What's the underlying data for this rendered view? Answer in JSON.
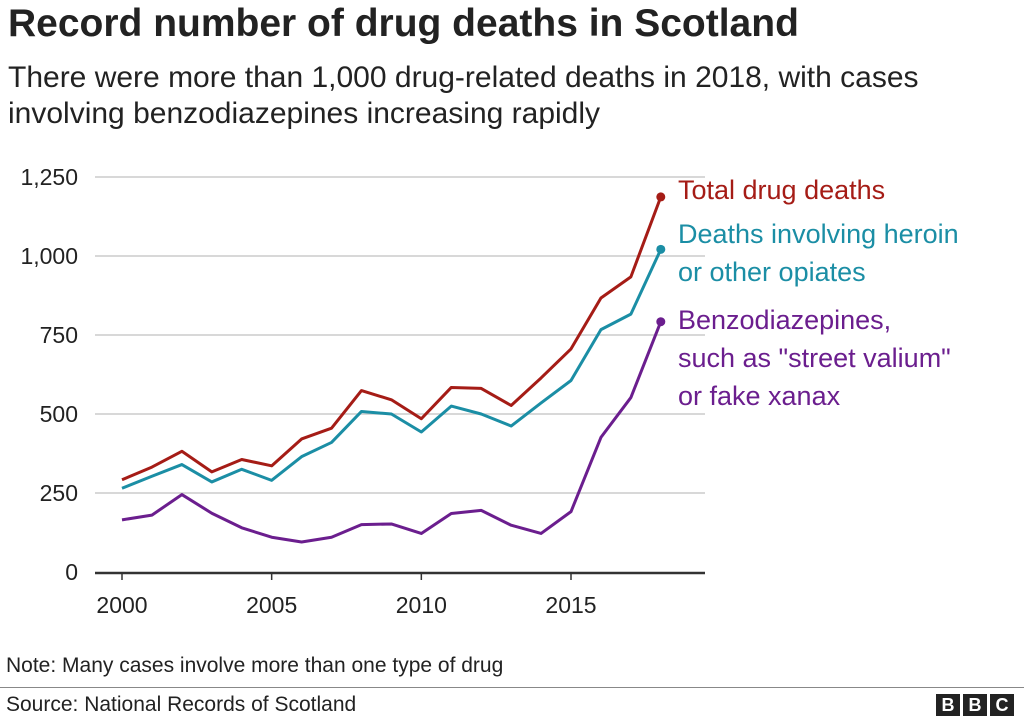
{
  "title": "Record number of drug deaths in Scotland",
  "subtitle": "There were more than 1,000 drug-related deaths in 2018, with cases involving benzodiazepines increasing rapidly",
  "note": "Note: Many cases involve more than one type of drug",
  "source": "Source: National Records of Scotland",
  "logo": [
    "B",
    "B",
    "C"
  ],
  "chart_data": {
    "type": "line",
    "x": [
      2000,
      2001,
      2002,
      2003,
      2004,
      2005,
      2006,
      2007,
      2008,
      2009,
      2010,
      2011,
      2012,
      2013,
      2014,
      2015,
      2016,
      2017,
      2018
    ],
    "xlim": [
      1999,
      2019.4
    ],
    "ylim": [
      0,
      1250
    ],
    "xticks": [
      2000,
      2005,
      2010,
      2015
    ],
    "xtick_labels": [
      "2000",
      "2005",
      "2010",
      "2015"
    ],
    "yticks": [
      0,
      250,
      500,
      750,
      1000,
      1250
    ],
    "ytick_labels": [
      "0",
      "250",
      "500",
      "750",
      "1,000",
      "1,250"
    ],
    "grid": true,
    "legend": "direct labels at line ends",
    "series": [
      {
        "name": "Total drug deaths",
        "label_lines": [
          "Total drug deaths"
        ],
        "color": "#a51c16",
        "values": [
          292,
          332,
          382,
          317,
          356,
          336,
          421,
          455,
          574,
          545,
          485,
          584,
          581,
          527,
          614,
          706,
          867,
          934,
          1187
        ]
      },
      {
        "name": "Deaths involving heroin or other opiates",
        "label_lines": [
          "Deaths involving heroin",
          "or other opiates"
        ],
        "color": "#1b8ea5",
        "values": [
          265,
          303,
          340,
          285,
          325,
          290,
          365,
          410,
          508,
          500,
          443,
          525,
          500,
          462,
          535,
          606,
          767,
          816,
          1021
        ]
      },
      {
        "name": "Benzodiazepines, such as \"street valium\" or fake xanax",
        "label_lines": [
          "Benzodiazepines,",
          "such as \"street valium\"",
          "or fake xanax"
        ],
        "color": "#6b1e8e",
        "values": [
          165,
          180,
          245,
          186,
          140,
          110,
          95,
          110,
          150,
          152,
          122,
          185,
          195,
          148,
          122,
          191,
          426,
          552,
          792
        ]
      }
    ]
  }
}
